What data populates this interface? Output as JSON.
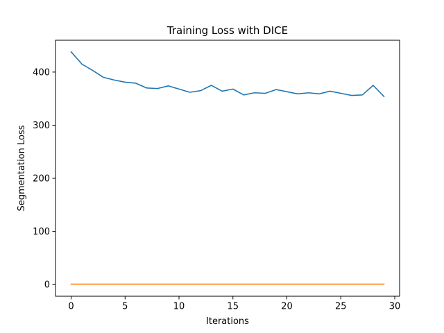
{
  "chart_data": {
    "type": "line",
    "title": "Training Loss with DICE",
    "xlabel": "Iterations",
    "ylabel": "Segmentation Loss",
    "xlim": [
      -1.45,
      30.45
    ],
    "ylim": [
      -21.9,
      459.9
    ],
    "xticks": [
      0,
      5,
      10,
      15,
      20,
      25,
      30
    ],
    "yticks": [
      0,
      100,
      200,
      300,
      400
    ],
    "grid": false,
    "x": [
      0,
      1,
      2,
      3,
      4,
      5,
      6,
      7,
      8,
      9,
      10,
      11,
      12,
      13,
      14,
      15,
      16,
      17,
      18,
      19,
      20,
      21,
      22,
      23,
      24,
      25,
      26,
      27,
      28,
      29
    ],
    "series": [
      {
        "color": "#1f77b4",
        "values": [
          438,
          415,
          403,
          390,
          385,
          381,
          379,
          370,
          369,
          374,
          368,
          362,
          365,
          375,
          364,
          368,
          357,
          361,
          360,
          367,
          363,
          359,
          361,
          359,
          364,
          360,
          356,
          357,
          375,
          354
        ]
      },
      {
        "color": "#ff7f0e",
        "values": [
          0.9,
          0.9,
          0.9,
          0.9,
          0.9,
          0.9,
          0.9,
          0.9,
          0.9,
          0.9,
          0.9,
          0.9,
          0.9,
          0.9,
          0.9,
          0.9,
          0.9,
          0.9,
          0.9,
          0.9,
          0.9,
          0.9,
          0.9,
          0.9,
          0.9,
          0.9,
          0.9,
          0.9,
          0.9,
          0.9
        ]
      }
    ]
  }
}
